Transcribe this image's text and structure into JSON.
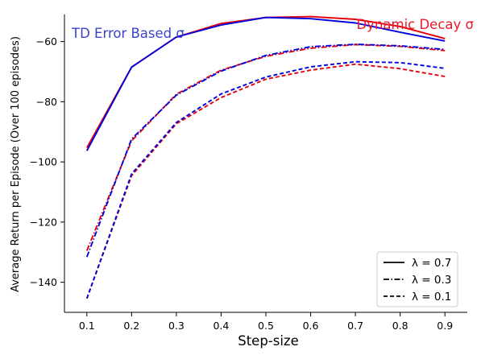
{
  "chart_data": {
    "type": "line",
    "xlabel": "Step-size",
    "ylabel": "Average Return per Episode (Over 100 episodes)",
    "x": [
      0.1,
      0.2,
      0.3,
      0.4,
      0.5,
      0.6,
      0.7,
      0.8,
      0.9
    ],
    "xticks": [
      "0.1",
      "0.2",
      "0.3",
      "0.4",
      "0.5",
      "0.6",
      "0.7",
      "0.8",
      "0.9"
    ],
    "yticks": [
      "−140",
      "−120",
      "−100",
      "−80",
      "−60"
    ],
    "ytick_values": [
      -140,
      -120,
      -100,
      -80,
      -60
    ],
    "xlim": [
      0.05,
      0.95
    ],
    "ylim": [
      -150,
      -51
    ],
    "grid": false,
    "legend_position": "bottom-right",
    "legend": [
      {
        "label": "λ = 0.7",
        "style": "solid"
      },
      {
        "label": "λ = 0.3",
        "style": "dashdot"
      },
      {
        "label": "λ = 0.1",
        "style": "dashed"
      }
    ],
    "annotations": [
      {
        "text": "TD Error Based σ",
        "color": "#3b43c9"
      },
      {
        "text": "Dynamic Decay σ",
        "color": "#e8192c"
      }
    ],
    "colors": {
      "td_error": "#0000dd",
      "dynamic_decay": "#e8000b"
    },
    "series": [
      {
        "method": "dynamic_decay",
        "lambda": 0.7,
        "style": "solid",
        "values": [
          -95.3,
          -68.5,
          -58.5,
          -54.0,
          -52.0,
          -51.7,
          -52.6,
          -55.0,
          -59.0
        ]
      },
      {
        "method": "td_error",
        "lambda": 0.7,
        "style": "solid",
        "values": [
          -96.3,
          -68.5,
          -58.5,
          -54.5,
          -52.0,
          -52.4,
          -53.8,
          -56.9,
          -59.8
        ]
      },
      {
        "method": "dynamic_decay",
        "lambda": 0.3,
        "style": "dashdot",
        "values": [
          -129.5,
          -93.0,
          -77.5,
          -69.5,
          -64.9,
          -62.2,
          -61.0,
          -61.6,
          -63.0
        ]
      },
      {
        "method": "td_error",
        "lambda": 0.3,
        "style": "dashdot",
        "values": [
          -131.6,
          -92.4,
          -77.8,
          -69.8,
          -64.6,
          -61.7,
          -60.9,
          -61.4,
          -62.6
        ]
      },
      {
        "method": "dynamic_decay",
        "lambda": 0.1,
        "style": "dashed",
        "values": [
          -145.4,
          -104.6,
          -87.3,
          -78.6,
          -72.5,
          -69.5,
          -67.5,
          -69.0,
          -71.6
        ]
      },
      {
        "method": "td_error",
        "lambda": 0.1,
        "style": "dashed",
        "values": [
          -145.4,
          -104.0,
          -86.9,
          -77.4,
          -71.8,
          -68.4,
          -66.7,
          -67.0,
          -68.9
        ]
      }
    ]
  }
}
